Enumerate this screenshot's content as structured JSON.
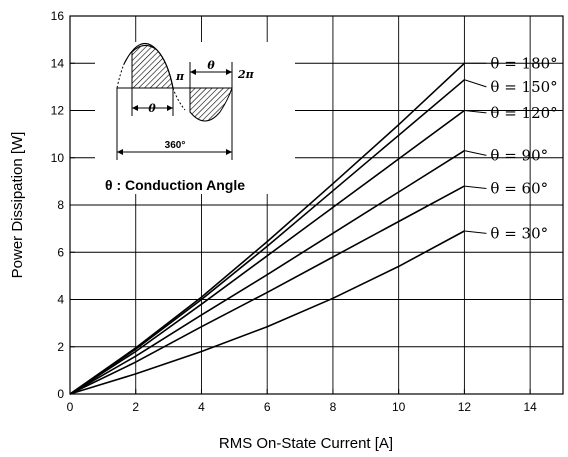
{
  "chart_data": {
    "type": "line",
    "title": "",
    "xlabel": "RMS On-State Current [A]",
    "ylabel": "Power Dissipation [W]",
    "xlim": [
      0,
      15
    ],
    "ylim": [
      0,
      16
    ],
    "x_ticks": [
      "0",
      "2",
      "4",
      "6",
      "8",
      "10",
      "12",
      "14"
    ],
    "y_ticks": [
      "0",
      "2",
      "4",
      "6",
      "8",
      "10",
      "12",
      "14",
      "16"
    ],
    "grid": true,
    "x": [
      0,
      2,
      4,
      6,
      8,
      10,
      12
    ],
    "series": [
      {
        "name": "θ = 180°",
        "values": [
          0,
          1.95,
          4.1,
          6.45,
          8.9,
          11.4,
          14.0
        ]
      },
      {
        "name": "θ = 150°",
        "values": [
          0,
          1.9,
          4.0,
          6.25,
          8.6,
          10.95,
          13.3
        ]
      },
      {
        "name": "θ = 120°",
        "values": [
          0,
          1.8,
          3.8,
          5.85,
          7.9,
          9.95,
          12.0
        ]
      },
      {
        "name": "θ = 90°",
        "values": [
          0,
          1.6,
          3.35,
          5.05,
          6.8,
          8.55,
          10.3
        ]
      },
      {
        "name": "θ = 60°",
        "values": [
          0,
          1.35,
          2.85,
          4.3,
          5.8,
          7.3,
          8.8
        ]
      },
      {
        "name": "θ = 30°",
        "values": [
          0,
          0.85,
          1.8,
          2.85,
          4.05,
          5.4,
          6.9
        ]
      }
    ],
    "annotation": {
      "note": "θ : Conduction Angle",
      "theta": "θ",
      "pi": "π",
      "two_pi": "2π",
      "deg360": "360°"
    }
  }
}
